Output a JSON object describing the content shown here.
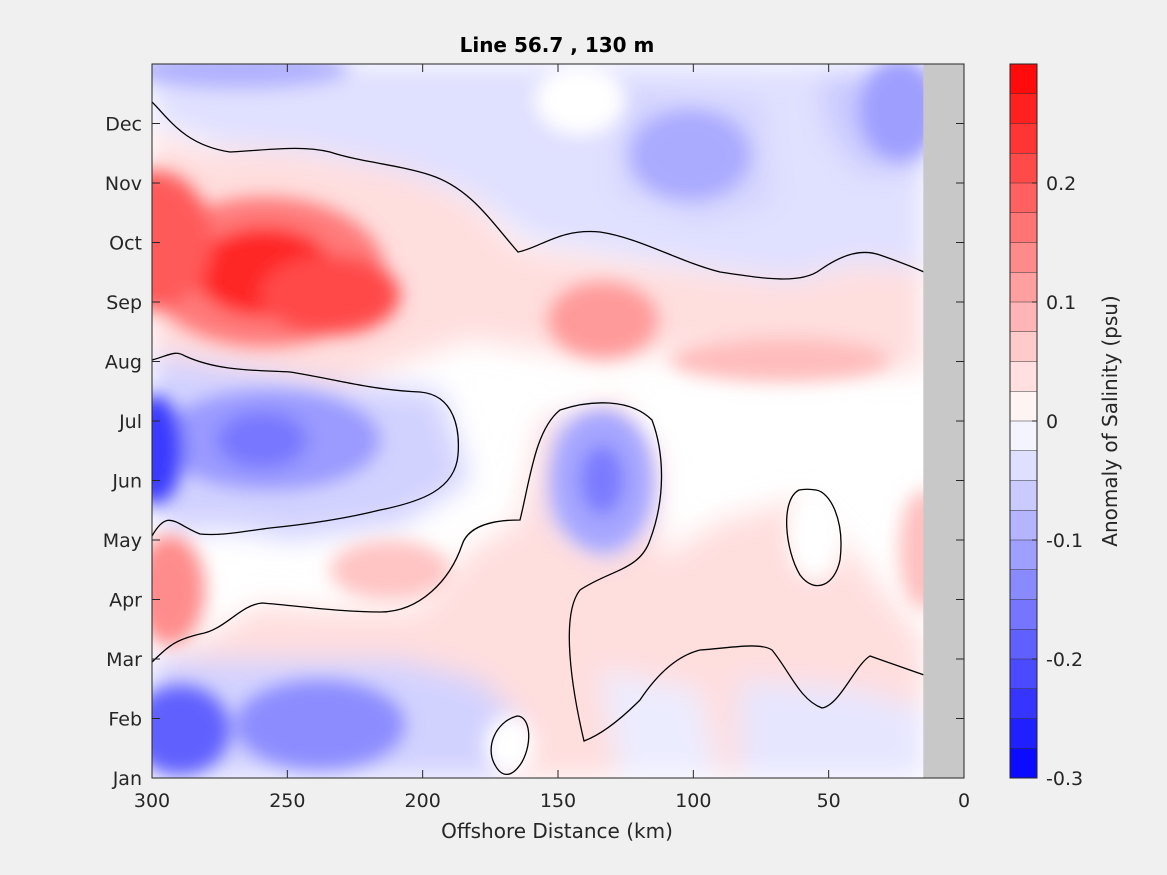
{
  "chart_data": {
    "type": "heatmap",
    "title": "Line 56.7 , 130 m",
    "xlabel": "Offshore Distance (km)",
    "ylabel": "",
    "colorbar_label": "Anomaly of Salinity (psu)",
    "xlim": [
      300,
      0
    ],
    "x_reversed": true,
    "x_ticks": [
      300,
      250,
      200,
      150,
      100,
      50,
      0
    ],
    "y_categories": [
      "Jan",
      "Feb",
      "Mar",
      "Apr",
      "May",
      "Jun",
      "Jul",
      "Aug",
      "Sep",
      "Oct",
      "Nov",
      "Dec"
    ],
    "clim": [
      -0.3,
      0.3
    ],
    "colorbar_ticks": [
      {
        "value": 0.2,
        "label": "0.2"
      },
      {
        "value": 0.1,
        "label": "0.1"
      },
      {
        "value": 0,
        "label": "0"
      },
      {
        "value": -0.1,
        "label": "-0.1"
      },
      {
        "value": -0.2,
        "label": "-0.2"
      },
      {
        "value": -0.3,
        "label": "-0.3"
      }
    ],
    "colormap": "blue-white-red",
    "missing_data_color": "#c8c8c8",
    "missing_data_range_km": [
      0,
      15
    ],
    "features": [
      {
        "month": "Sep",
        "x_km": 257,
        "anomaly": 0.25
      },
      {
        "month": "Sep",
        "x_km": 130,
        "anomaly": 0.12
      },
      {
        "month": "Aug",
        "x_km": 30,
        "anomaly": 0.07
      },
      {
        "month": "May",
        "x_km": 295,
        "anomaly": 0.12
      },
      {
        "month": "Apr",
        "x_km": 210,
        "anomaly": 0.05
      },
      {
        "month": "Jul",
        "x_km": 298,
        "anomaly": -0.25
      },
      {
        "month": "Jul",
        "x_km": 255,
        "anomaly": -0.15
      },
      {
        "month": "Jun",
        "x_km": 133,
        "anomaly": -0.14
      },
      {
        "month": "Feb",
        "x_km": 290,
        "anomaly": -0.18
      },
      {
        "month": "Feb",
        "x_km": 240,
        "anomaly": -0.12
      },
      {
        "month": "Nov",
        "x_km": 95,
        "anomaly": -0.1
      },
      {
        "month": "Dec",
        "x_km": 25,
        "anomaly": -0.07
      },
      {
        "month": "Jan",
        "x_km": 20,
        "anomaly": -0.08
      }
    ]
  }
}
